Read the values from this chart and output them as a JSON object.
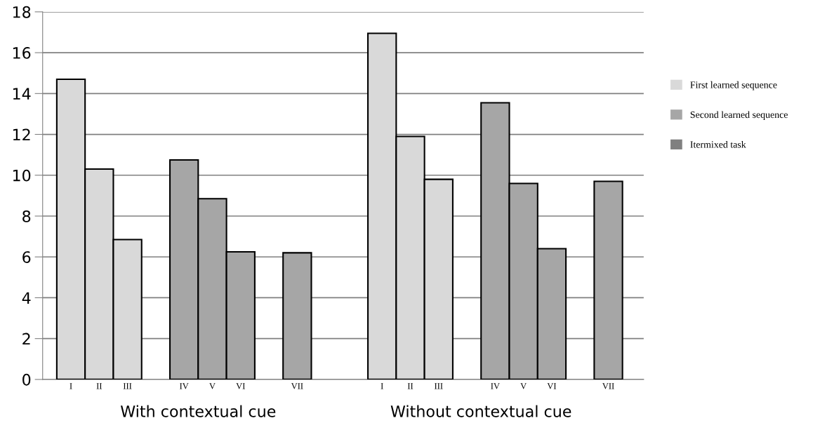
{
  "chart_data": {
    "type": "bar",
    "categories": [
      "I",
      "II",
      "III",
      null,
      "IV",
      "V",
      "VI",
      null,
      "VII",
      null,
      null,
      "I",
      "II",
      "III",
      null,
      "IV",
      "V",
      "VI",
      null,
      "VII"
    ],
    "series": [
      {
        "name": "First learned sequence",
        "color": "#d9d9d9",
        "values": [
          14.7,
          10.3,
          6.85,
          null,
          null,
          null,
          null,
          null,
          null,
          null,
          null,
          16.95,
          11.9,
          9.8,
          null,
          null,
          null,
          null,
          null,
          null
        ]
      },
      {
        "name": "Second learned sequence",
        "color": "#a6a6a6",
        "values": [
          null,
          null,
          null,
          null,
          10.75,
          8.85,
          6.25,
          null,
          6.2,
          null,
          null,
          null,
          null,
          null,
          null,
          13.55,
          9.6,
          6.4,
          null,
          9.7
        ]
      },
      {
        "name": "Itermixed task",
        "color": "#808080",
        "values": [
          null,
          null,
          null,
          null,
          null,
          null,
          null,
          null,
          null,
          null,
          null,
          null,
          null,
          null,
          null,
          null,
          null,
          null,
          null,
          null
        ]
      }
    ],
    "ylim": [
      0,
      18
    ],
    "yticks": [
      0,
      2,
      4,
      6,
      8,
      10,
      12,
      14,
      16,
      18
    ],
    "grid": "y",
    "legend": "right",
    "annotations": [
      "With contextual cue",
      "Without contextual cue"
    ]
  }
}
